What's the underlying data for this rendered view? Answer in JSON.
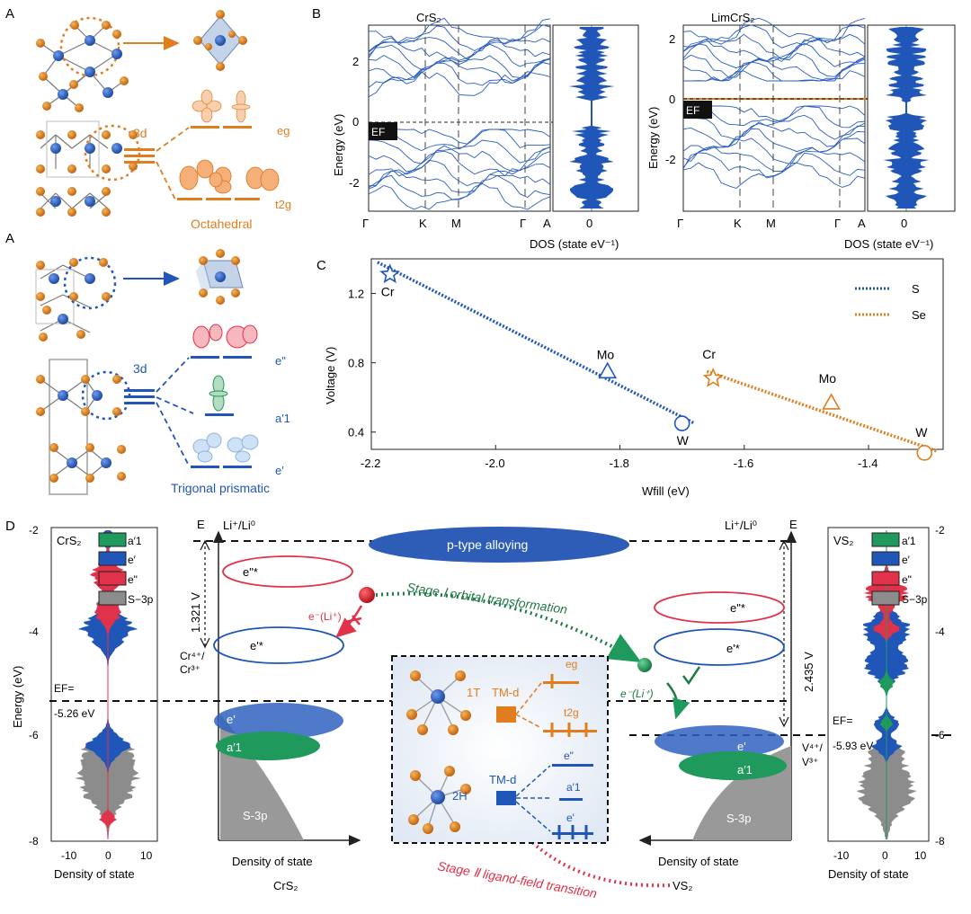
{
  "colors": {
    "orange": "#e07d1f",
    "blue": "#2056b8",
    "green": "#1f9a5c",
    "red": "#e0324a",
    "gray": "#8c8c8c",
    "dark": "#222222"
  },
  "panelA": {
    "label": "A",
    "octahedral": {
      "shell": "3d",
      "eg": "eg",
      "t2g": "t2g",
      "caption": "Octahedral"
    },
    "trigonal": {
      "shell": "3d",
      "e2": "e\"",
      "a1": "a′1",
      "e1": "e′",
      "caption": "Trigonal prismatic"
    }
  },
  "panelB": {
    "label": "B",
    "left_title": "CrS₂",
    "right_title": "LimCrS₂",
    "ylabel": "Energy (eV)",
    "yticks": [
      "2",
      "0",
      "-2"
    ],
    "kpath": [
      "Γ",
      "K",
      "M",
      "Γ",
      "A"
    ],
    "dos_tick": "0",
    "dos_label": "DOS (state eV⁻¹)",
    "ef_label": "EF"
  },
  "chart_data": {
    "type": "scatter",
    "title": "",
    "xlabel": "Wfill (eV)",
    "ylabel": "Voltage (V)",
    "xlim": [
      -2.2,
      -1.28
    ],
    "ylim": [
      0.3,
      1.4
    ],
    "xticks": [
      "-2.2",
      "-2.0",
      "-1.8",
      "-1.6",
      "-1.4"
    ],
    "yticks": [
      "1.2",
      "0.8",
      "0.4"
    ],
    "legend": [
      "S",
      "Se"
    ],
    "series": [
      {
        "name": "S",
        "points": [
          {
            "label": "Cr",
            "x": -2.17,
            "y": 1.31,
            "marker": "star"
          },
          {
            "label": "Mo",
            "x": -1.82,
            "y": 0.75,
            "marker": "triangle"
          },
          {
            "label": "W",
            "x": -1.7,
            "y": 0.45,
            "marker": "circle"
          }
        ],
        "fit": [
          [
            -2.19,
            1.38
          ],
          [
            -1.68,
            0.45
          ]
        ]
      },
      {
        "name": "Se",
        "points": [
          {
            "label": "Cr",
            "x": -1.65,
            "y": 0.71,
            "marker": "star"
          },
          {
            "label": "Mo",
            "x": -1.46,
            "y": 0.57,
            "marker": "triangle"
          },
          {
            "label": "W",
            "x": -1.31,
            "y": 0.28,
            "marker": "circle"
          }
        ],
        "fit": [
          [
            -1.66,
            0.75
          ],
          [
            -1.29,
            0.29
          ]
        ]
      }
    ]
  },
  "panelC": {
    "label": "C"
  },
  "panelD": {
    "label": "D",
    "left_dos": {
      "title": "CrS₂",
      "legend": [
        "a′1",
        "e′",
        "e\"",
        "S−3p"
      ],
      "yticks": [
        "-2",
        "-4",
        "-6",
        "-8"
      ],
      "xticks": [
        "-10",
        "0",
        "10"
      ],
      "xlabel": "Density of state",
      "ylabel": "Energy (eV)",
      "ef_label": "EF=",
      "ef_value": "-5.26 eV"
    },
    "right_dos": {
      "title": "VS₂",
      "legend": [
        "a′1",
        "e′",
        "e\"",
        "S−3p"
      ],
      "yticks": [
        "-2",
        "-4",
        "-6",
        "-8"
      ],
      "xticks": [
        "-10",
        "0",
        "10"
      ],
      "xlabel": "Density of state",
      "ef_label": "EF=",
      "ef_value": "-5.93 eV"
    },
    "scheme": {
      "e_axis": "E",
      "li_ref_left": "Li⁺/Li⁰",
      "li_ref_right": "Li⁺/Li⁰",
      "alloying": "p-type alloying",
      "e2_star": "e\"*",
      "e1_star": "e'*",
      "voltage_left": "1.321 V",
      "voltage_right": "2.435 V",
      "redox_left": "Cr⁴⁺/\nCr³⁺",
      "redox_left_1": "Cr⁴⁺/",
      "redox_left_2": "Cr³⁺",
      "redox_right_1": "V⁴⁺/",
      "redox_right_2": "V³⁺",
      "e1": "e'",
      "a1": "a′1",
      "s3p": "S-3p",
      "electron_left": "e⁻(Li⁺)",
      "electron_right": "e⁻(Li⁺)",
      "stage1": "Stage Ⅰ  orbital transformation",
      "stage2": "Stage Ⅱ ligand-field transition",
      "dos_label": "Density of state",
      "left_name": "CrS₂",
      "right_name": "VS₂"
    },
    "inset": {
      "phase_1t": "1T",
      "phase_2h": "2H",
      "tmd_top": "TM-d",
      "tmd_bottom": "TM-d",
      "eg": "eg",
      "t2g": "t2g",
      "e2": "e\"",
      "a1": "a′1",
      "e1": "e'"
    }
  }
}
